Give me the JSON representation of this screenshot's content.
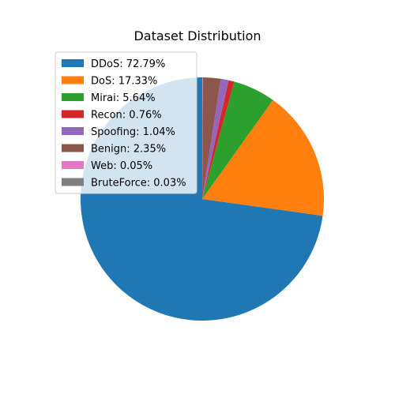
{
  "chart_data": {
    "type": "pie",
    "title": "Dataset Distribution",
    "legend_position": "upper-left",
    "start_angle_deg": 90,
    "direction": "clockwise",
    "slices": [
      {
        "label": "DDoS",
        "value": 72.79,
        "legend_text": "DDoS: 72.79%",
        "color": "#1f77b4"
      },
      {
        "label": "DoS",
        "value": 17.33,
        "legend_text": "DoS: 17.33%",
        "color": "#ff7f0e"
      },
      {
        "label": "Mirai",
        "value": 5.64,
        "legend_text": "Mirai: 5.64%",
        "color": "#2ca02c"
      },
      {
        "label": "Recon",
        "value": 0.76,
        "legend_text": "Recon: 0.76%",
        "color": "#d62728"
      },
      {
        "label": "Spoofing",
        "value": 1.04,
        "legend_text": "Spoofing: 1.04%",
        "color": "#9467bd"
      },
      {
        "label": "Benign",
        "value": 2.35,
        "legend_text": "Benign: 2.35%",
        "color": "#8c564b"
      },
      {
        "label": "Web",
        "value": 0.05,
        "legend_text": "Web: 0.05%",
        "color": "#e377c2"
      },
      {
        "label": "BruteForce",
        "value": 0.03,
        "legend_text": "BruteForce: 0.03%",
        "color": "#7f7f7f"
      }
    ]
  }
}
